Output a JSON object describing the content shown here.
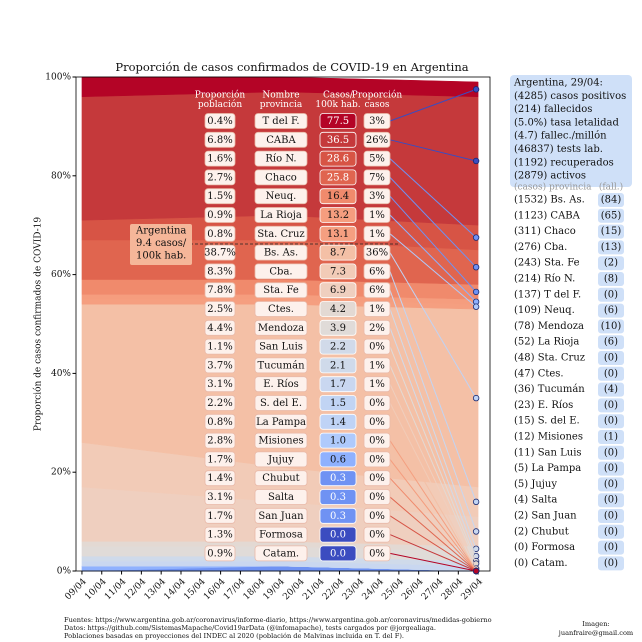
{
  "chart_data": {
    "type": "stacked-area",
    "title": "Proporción de casos confirmados de COVID-19 en Argentina",
    "ylabel": "Proporción de casos confirmados de COVID-19",
    "xlim": [
      8.7,
      29.6
    ],
    "xticks": [
      {
        "value": 9,
        "label": "09/04"
      },
      {
        "value": 10,
        "label": "10/04"
      },
      {
        "value": 11,
        "label": "11/04"
      },
      {
        "value": 12,
        "label": "12/04"
      },
      {
        "value": 13,
        "label": "13/04"
      },
      {
        "value": 14,
        "label": "14/04"
      },
      {
        "value": 15,
        "label": "15/04"
      },
      {
        "value": 16,
        "label": "16/04"
      },
      {
        "value": 17,
        "label": "17/04"
      },
      {
        "value": 18,
        "label": "18/04"
      },
      {
        "value": 19,
        "label": "19/04"
      },
      {
        "value": 20,
        "label": "20/04"
      },
      {
        "value": 21,
        "label": "21/04"
      },
      {
        "value": 22,
        "label": "22/04"
      },
      {
        "value": 23,
        "label": "23/04"
      },
      {
        "value": 24,
        "label": "24/04"
      },
      {
        "value": 25,
        "label": "25/04"
      },
      {
        "value": 26,
        "label": "26/04"
      },
      {
        "value": 27,
        "label": "27/04"
      },
      {
        "value": 28,
        "label": "28/04"
      },
      {
        "value": 29,
        "label": "29/04"
      }
    ],
    "ylim": [
      0,
      100
    ],
    "yticks": [
      {
        "value": 0,
        "label": "0%"
      },
      {
        "value": 20,
        "label": "20%"
      },
      {
        "value": 40,
        "label": "40%"
      },
      {
        "value": 60,
        "label": "60%"
      },
      {
        "value": 80,
        "label": "80%"
      },
      {
        "value": 100,
        "label": "100%"
      }
    ],
    "x": [
      9,
      19,
      29
    ],
    "columns": [
      [
        "Proporción",
        "población"
      ],
      [
        "Nombre",
        "provincia"
      ],
      [
        "Casos/",
        "100k hab."
      ],
      [
        "Proporción",
        "casos"
      ]
    ],
    "series": [
      {
        "name": "T del F.",
        "color": "#b40426",
        "values": [
          4,
          3,
          3
        ],
        "population": "0.4%",
        "rate": "77.5",
        "share": "3%"
      },
      {
        "name": "CABA",
        "color": "#c5393b",
        "values": [
          25,
          25,
          26
        ],
        "population": "6.8%",
        "rate": "36.5",
        "share": "26%"
      },
      {
        "name": "Río N.",
        "color": "#d75445",
        "values": [
          4,
          5,
          5
        ],
        "population": "1.6%",
        "rate": "28.6",
        "share": "5%"
      },
      {
        "name": "Chaco",
        "color": "#e0654f",
        "values": [
          8,
          8,
          7
        ],
        "population": "2.7%",
        "rate": "25.8",
        "share": "7%"
      },
      {
        "name": "Neuq.",
        "color": "#f08a6c",
        "values": [
          3,
          3,
          3
        ],
        "population": "1.5%",
        "rate": "16.4",
        "share": "3%"
      },
      {
        "name": "La Rioja",
        "color": "#f59d7e",
        "values": [
          1,
          1,
          1
        ],
        "population": "0.9%",
        "rate": "13.2",
        "share": "1%"
      },
      {
        "name": "Sta. Cruz",
        "color": "#f59f80",
        "values": [
          1,
          1,
          1
        ],
        "population": "0.8%",
        "rate": "13.1",
        "share": "1%"
      },
      {
        "name": "Bs. As.",
        "color": "#f4c0a6",
        "values": [
          28,
          33,
          36
        ],
        "population": "38.7%",
        "rate": "8.7",
        "share": "36%"
      },
      {
        "name": "Cba.",
        "color": "#f2cbb7",
        "values": [
          9,
          7,
          6
        ],
        "population": "8.3%",
        "rate": "7.3",
        "share": "6%"
      },
      {
        "name": "Sta. Fe",
        "color": "#efcfbf",
        "values": [
          11,
          8,
          6
        ],
        "population": "7.8%",
        "rate": "6.9",
        "share": "6%"
      },
      {
        "name": "Ctes.",
        "color": "#e3d9d3",
        "values": [
          1,
          1,
          1
        ],
        "population": "2.5%",
        "rate": "4.2",
        "share": "1%"
      },
      {
        "name": "Mendoza",
        "color": "#e0dbd8",
        "values": [
          2,
          2,
          2
        ],
        "population": "4.4%",
        "rate": "3.9",
        "share": "2%"
      },
      {
        "name": "San Luis",
        "color": "#d1dae9",
        "values": [
          0,
          0,
          0
        ],
        "population": "1.1%",
        "rate": "2.2",
        "share": "0%"
      },
      {
        "name": "Tucumán",
        "color": "#cfdaea",
        "values": [
          1,
          1,
          1
        ],
        "population": "3.7%",
        "rate": "2.1",
        "share": "1%"
      },
      {
        "name": "E. Ríos",
        "color": "#c9d7f0",
        "values": [
          1,
          1,
          1
        ],
        "population": "3.1%",
        "rate": "1.7",
        "share": "1%"
      },
      {
        "name": "S. del E.",
        "color": "#c1d4f4",
        "values": [
          0,
          0,
          0
        ],
        "population": "2.2%",
        "rate": "1.5",
        "share": "0%"
      },
      {
        "name": "La Pampa",
        "color": "#bfd3f6",
        "values": [
          0,
          0,
          0
        ],
        "population": "0.8%",
        "rate": "1.4",
        "share": "0%"
      },
      {
        "name": "Misiones",
        "color": "#afcafc",
        "values": [
          0,
          0,
          0
        ],
        "population": "2.8%",
        "rate": "1.0",
        "share": "0%"
      },
      {
        "name": "Jujuy",
        "color": "#8fb1fe",
        "values": [
          1,
          0,
          0
        ],
        "population": "1.7%",
        "rate": "0.6",
        "share": "0%"
      },
      {
        "name": "Chubut",
        "color": "#6f92f3",
        "values": [
          0,
          0,
          0
        ],
        "population": "1.4%",
        "rate": "0.3",
        "share": "0%"
      },
      {
        "name": "Salta",
        "color": "#6f92f3",
        "values": [
          0,
          1,
          0
        ],
        "population": "3.1%",
        "rate": "0.3",
        "share": "0%"
      },
      {
        "name": "San Juan",
        "color": "#6f92f3",
        "values": [
          0,
          0,
          0
        ],
        "population": "1.7%",
        "rate": "0.3",
        "share": "0%"
      },
      {
        "name": "Formosa",
        "color": "#3b4cc0",
        "values": [
          0,
          0,
          0
        ],
        "population": "1.3%",
        "rate": "0.0",
        "share": "0%"
      },
      {
        "name": "Catam.",
        "color": "#3b4cc0",
        "values": [
          0,
          0,
          0
        ],
        "population": "0.9%",
        "rate": "0.0",
        "share": "0%"
      }
    ],
    "annotation": [
      "Argentina",
      "9.4 casos/",
      "100k hab."
    ],
    "summary": [
      "Argentina, 29/04:",
      "(4285) casos positivos",
      "(214) fallecidos",
      "(5.0%) tasa letalidad",
      "(4.7) fallec./millón",
      "(46837) tests lab.",
      "(1192) recuperados",
      "(2879) activos"
    ],
    "legend_header": [
      "(casos) provincia",
      "(fall.)"
    ],
    "legend": [
      {
        "cases": "(1532) Bs. As.",
        "deaths": "(84)"
      },
      {
        "cases": "(1123) CABA",
        "deaths": "(65)"
      },
      {
        "cases": "(311) Chaco",
        "deaths": "(15)"
      },
      {
        "cases": "(276) Cba.",
        "deaths": "(13)"
      },
      {
        "cases": "(243) Sta. Fe",
        "deaths": "(2)"
      },
      {
        "cases": "(214) Río N.",
        "deaths": "(8)"
      },
      {
        "cases": "(137) T del F.",
        "deaths": "(0)"
      },
      {
        "cases": "(109) Neuq.",
        "deaths": "(6)"
      },
      {
        "cases": "(78) Mendoza",
        "deaths": "(10)"
      },
      {
        "cases": "(52) La Rioja",
        "deaths": "(6)"
      },
      {
        "cases": "(48) Sta. Cruz",
        "deaths": "(0)"
      },
      {
        "cases": "(47) Ctes.",
        "deaths": "(0)"
      },
      {
        "cases": "(36) Tucumán",
        "deaths": "(4)"
      },
      {
        "cases": "(23) E. Ríos",
        "deaths": "(0)"
      },
      {
        "cases": "(15) S. del E.",
        "deaths": "(0)"
      },
      {
        "cases": "(12) Misiones",
        "deaths": "(1)"
      },
      {
        "cases": "(11) San Luis",
        "deaths": "(0)"
      },
      {
        "cases": "(5) La Pampa",
        "deaths": "(0)"
      },
      {
        "cases": "(5) Jujuy",
        "deaths": "(0)"
      },
      {
        "cases": "(4) Salta",
        "deaths": "(0)"
      },
      {
        "cases": "(2) San Juan",
        "deaths": "(0)"
      },
      {
        "cases": "(2) Chubut",
        "deaths": "(0)"
      },
      {
        "cases": "(0) Formosa",
        "deaths": "(0)"
      },
      {
        "cases": "(0) Catam.",
        "deaths": "(0)"
      }
    ],
    "footer": [
      "Fuentes: https://www.argentina.gob.ar/coronavirus/informe-diario, https://www.argentina.gob.ar/coronavirus/medidas-gobierno",
      "Datos: https://github.com/SistemasMapache/Covid19arData (@infomapache), tests cargados por @jorgealiaga.",
      "Poblaciones basadas en proyecciones del INDEC al 2020 (población de Malvinas incluida en T. del F)."
    ],
    "credit": [
      "Imagen:",
      "juanfraire@gmail.com"
    ]
  }
}
